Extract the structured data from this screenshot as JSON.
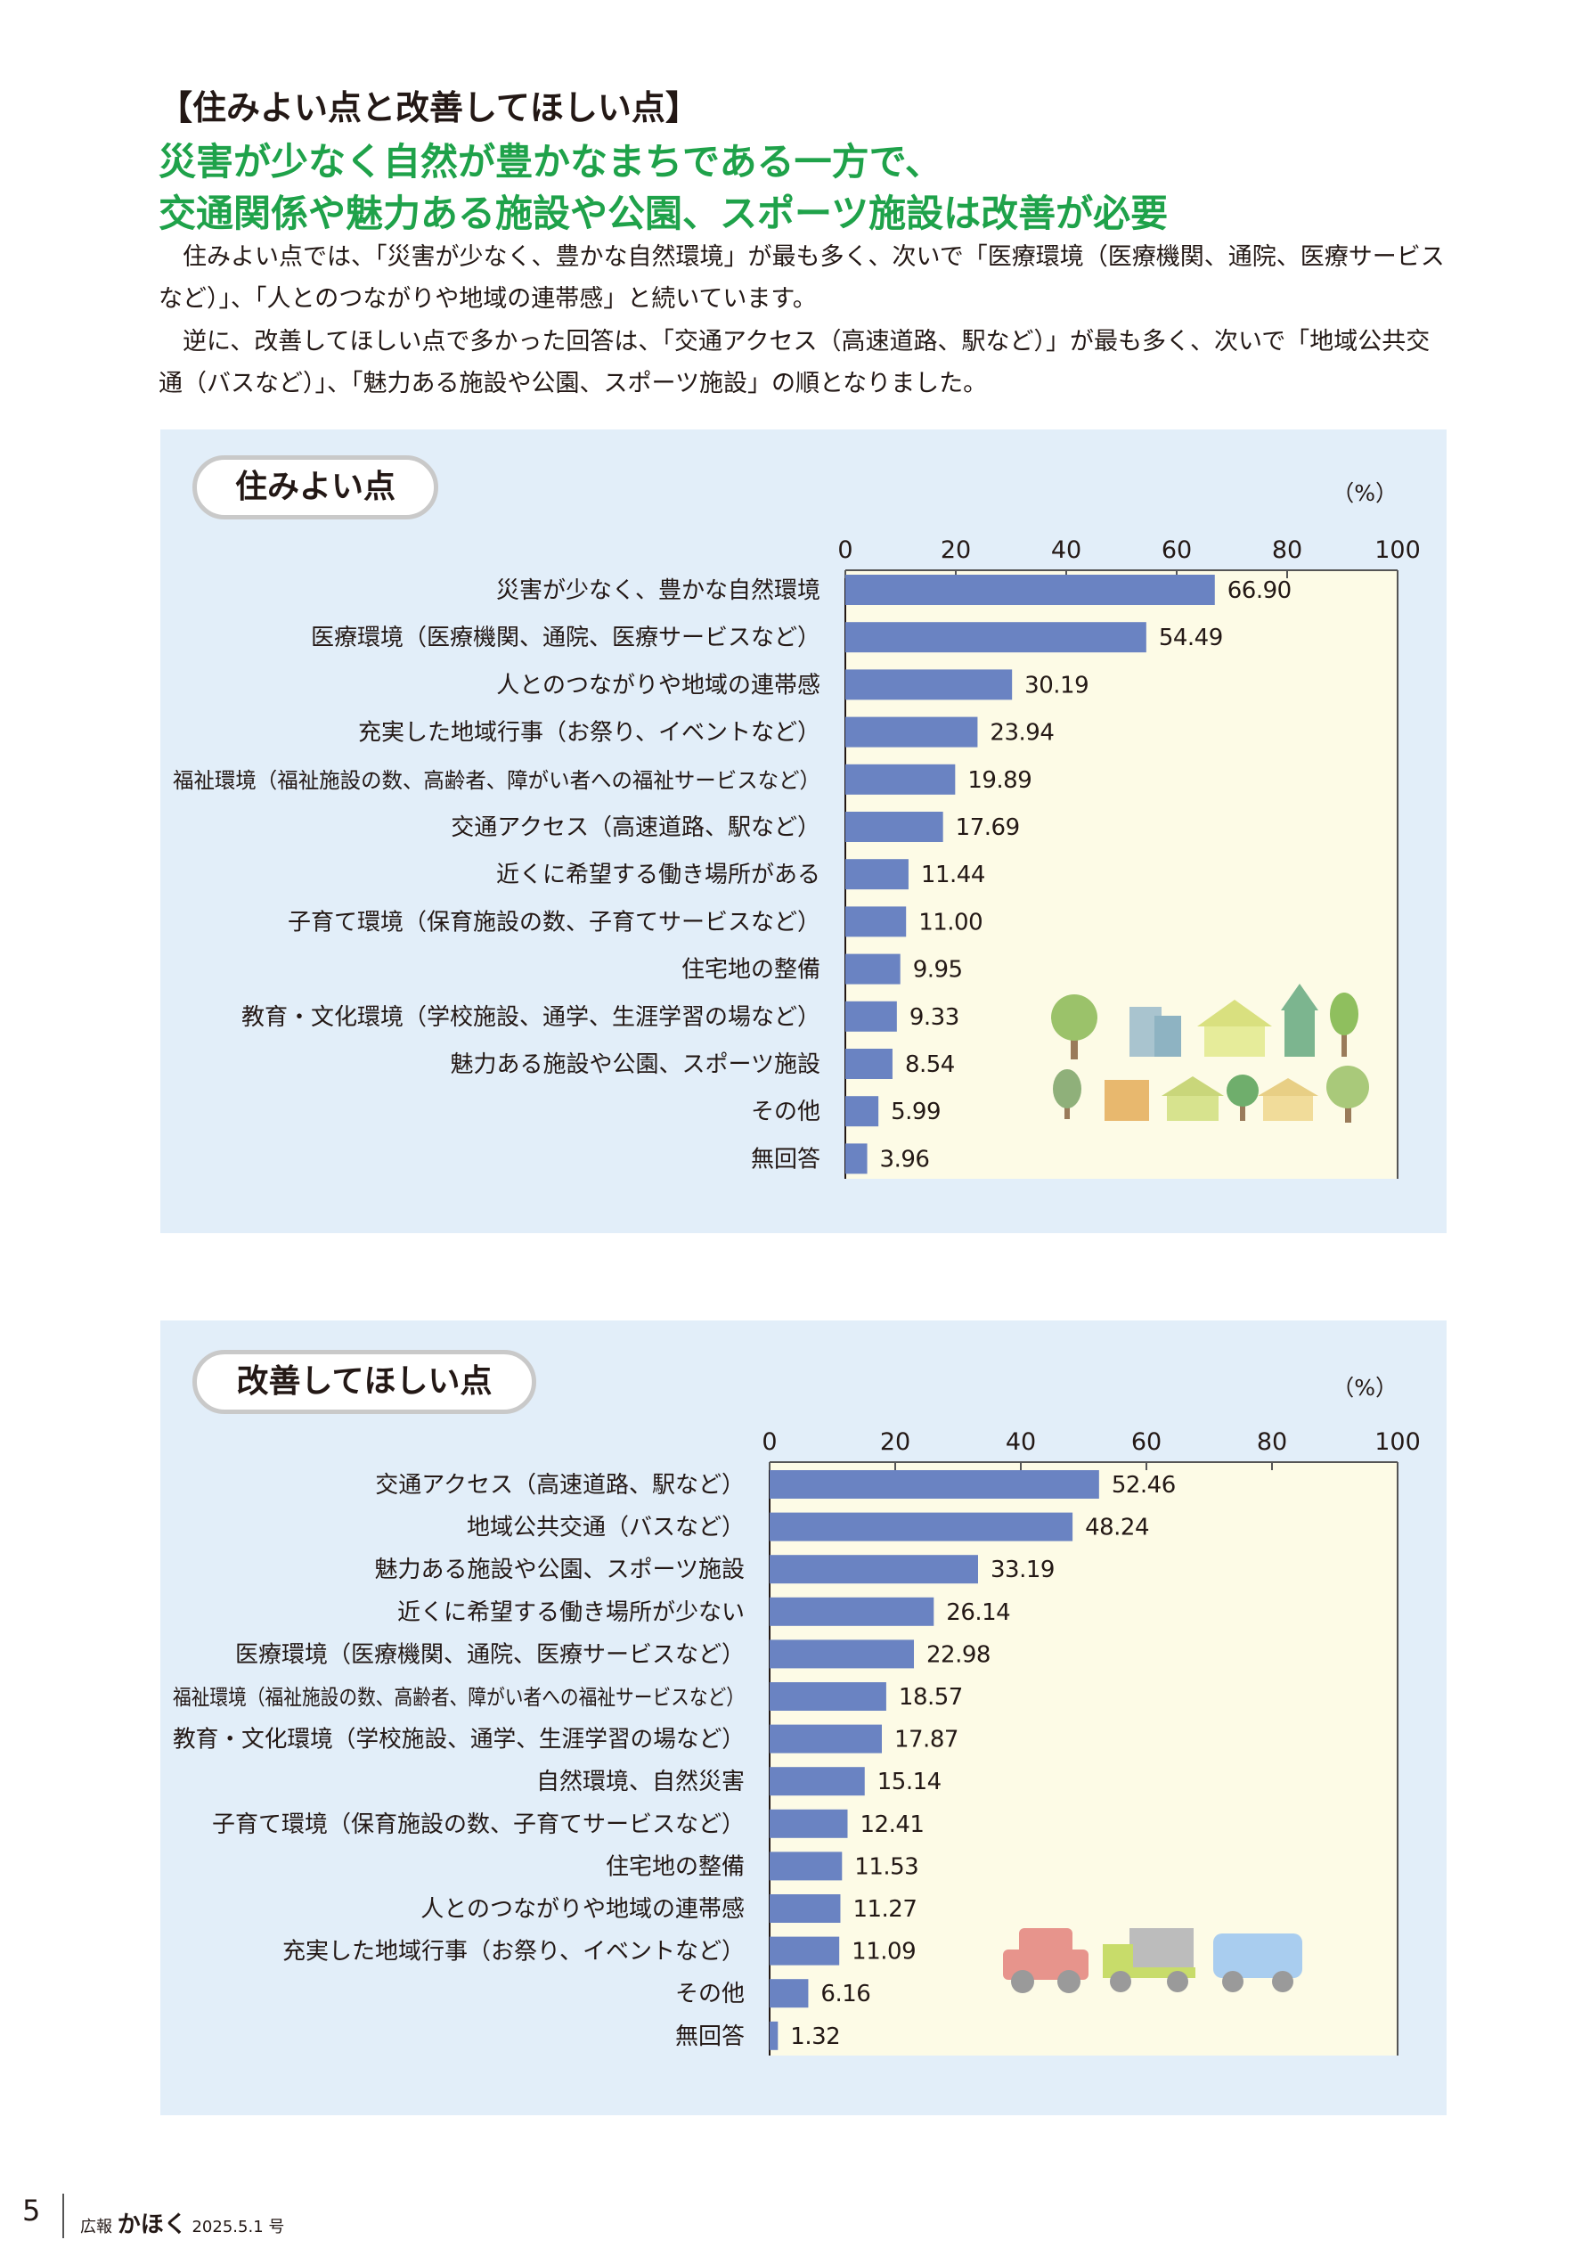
{
  "header": {
    "section_heading": "【住みよい点と改善してほしい点】",
    "headline_line1": "災害が少なく自然が豊かなまちである一方で、",
    "headline_line2": "交通関係や魅力ある施設や公園、スポーツ施設は改善が必要"
  },
  "intro": {
    "paragraph1": "住みよい点では、「災害が少なく、豊かな自然環境」が最も多く、次いで「医療環境（医療機関、通院、医療サービスなど）」、「人とのつながりや地域の連帯感」と続いています。",
    "paragraph2": "逆に、改善してほしい点で多かった回答は、「交通アクセス（高速道路、駅など）」が最も多く、次いで「地域公共交通（バスなど）」、「魅力ある施設や公園、スポーツ施設」の順となりました。"
  },
  "colors": {
    "headline_green": "#1fa24a",
    "panel_bg": "#e2eef9",
    "plot_bg": "#fdfbe6",
    "bar": "#6a83c2"
  },
  "illustrations": {
    "chart1": [
      "tree-icon",
      "building-icon",
      "house-icon",
      "tower-icon",
      "tree-icon",
      "house-icon"
    ],
    "chart2": [
      "car-icon",
      "truck-icon",
      "van-icon"
    ]
  },
  "chart_data": [
    {
      "type": "bar",
      "orientation": "horizontal",
      "title": "住みよい点",
      "unit": "（%）",
      "xlim": [
        0,
        100
      ],
      "ticks": [
        0,
        20,
        40,
        60,
        80,
        100
      ],
      "grid": false,
      "categories": [
        "災害が少なく、豊かな自然環境",
        "医療環境（医療機関、通院、医療サービスなど）",
        "人とのつながりや地域の連帯感",
        "充実した地域行事（お祭り、イベントなど）",
        "福祉環境（福祉施設の数、高齢者、障がい者への福祉サービスなど）",
        "交通アクセス（高速道路、駅など）",
        "近くに希望する働き場所がある",
        "子育て環境（保育施設の数、子育てサービスなど）",
        "住宅地の整備",
        "教育・文化環境（学校施設、通学、生涯学習の場など）",
        "魅力ある施設や公園、スポーツ施設",
        "その他",
        "無回答"
      ],
      "values": [
        66.9,
        54.49,
        30.19,
        23.94,
        19.89,
        17.69,
        11.44,
        11.0,
        9.95,
        9.33,
        8.54,
        5.99,
        3.96
      ],
      "value_labels": [
        "66.90",
        "54.49",
        "30.19",
        "23.94",
        "19.89",
        "17.69",
        "11.44",
        "11.00",
        "9.95",
        "9.33",
        "8.54",
        "5.99",
        "3.96"
      ]
    },
    {
      "type": "bar",
      "orientation": "horizontal",
      "title": "改善してほしい点",
      "unit": "（%）",
      "xlim": [
        0,
        100
      ],
      "ticks": [
        0,
        20,
        40,
        60,
        80,
        100
      ],
      "grid": false,
      "categories": [
        "交通アクセス（高速道路、駅など）",
        "地域公共交通（バスなど）",
        "魅力ある施設や公園、スポーツ施設",
        "近くに希望する働き場所が少ない",
        "医療環境（医療機関、通院、医療サービスなど）",
        "福祉環境（福祉施設の数、高齢者、障がい者への福祉サービスなど）",
        "教育・文化環境（学校施設、通学、生涯学習の場など）",
        "自然環境、自然災害",
        "子育て環境（保育施設の数、子育てサービスなど）",
        "住宅地の整備",
        "人とのつながりや地域の連帯感",
        "充実した地域行事（お祭り、イベントなど）",
        "その他",
        "無回答"
      ],
      "values": [
        52.46,
        48.24,
        33.19,
        26.14,
        22.98,
        18.57,
        17.87,
        15.14,
        12.41,
        11.53,
        11.27,
        11.09,
        6.16,
        1.32
      ],
      "value_labels": [
        "52.46",
        "48.24",
        "33.19",
        "26.14",
        "22.98",
        "18.57",
        "17.87",
        "15.14",
        "12.41",
        "11.53",
        "11.27",
        "11.09",
        "6.16",
        "1.32"
      ]
    }
  ],
  "footer": {
    "page_number": "5",
    "publication": "広報",
    "magazine": "かほく",
    "issue": "2025.5.1 号"
  }
}
